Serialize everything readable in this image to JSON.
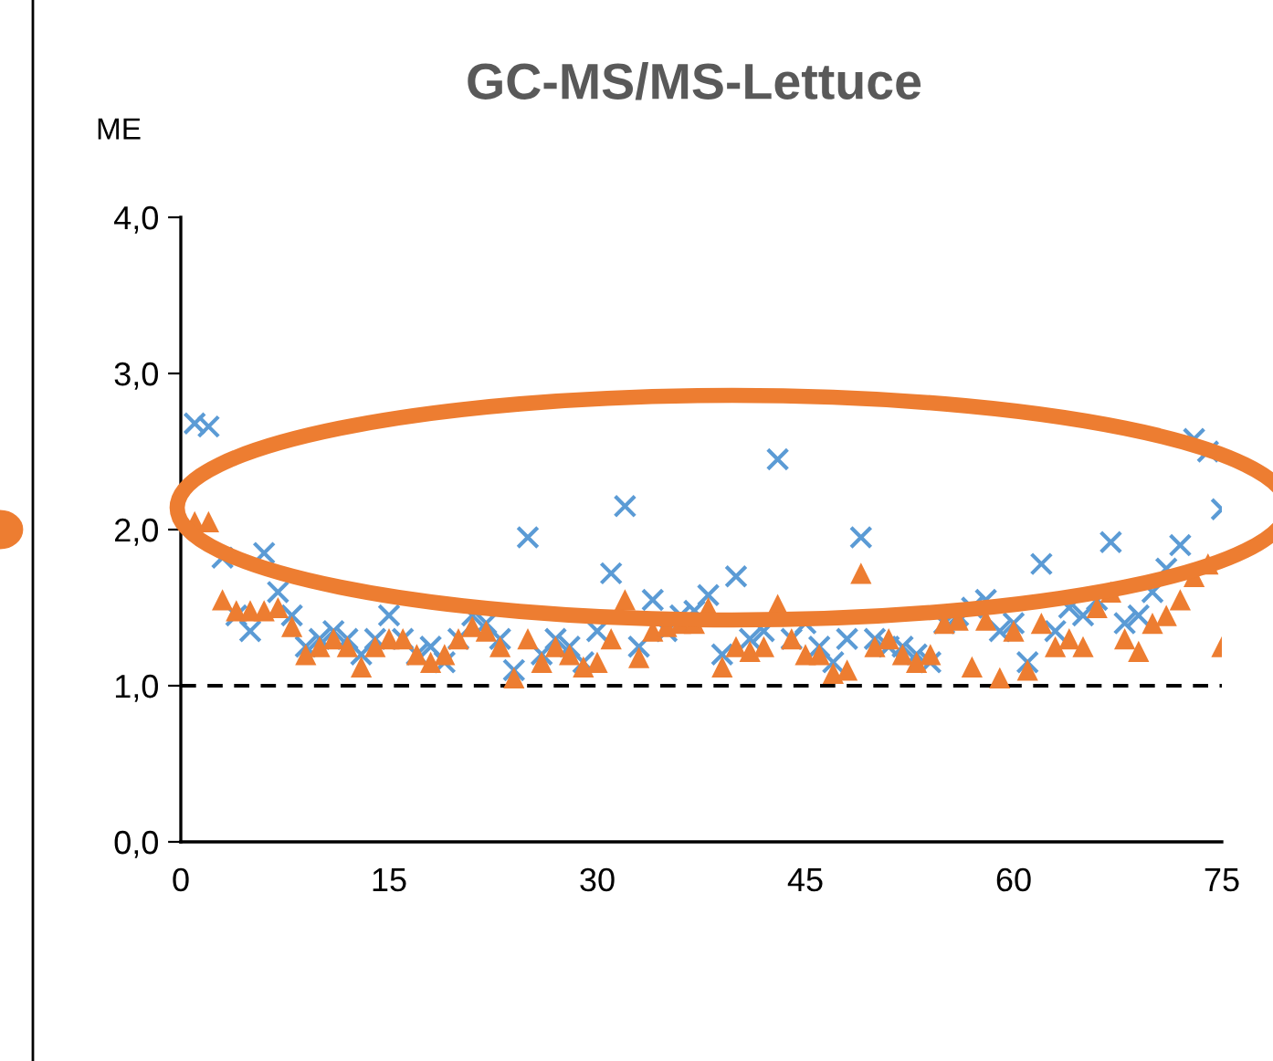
{
  "chart_data": {
    "type": "scatter",
    "title": "GC-MS/MS-Lettuce",
    "ylabel": "ME",
    "x": [
      1,
      2,
      3,
      4,
      5,
      6,
      7,
      8,
      9,
      10,
      11,
      12,
      13,
      14,
      15,
      16,
      17,
      18,
      19,
      20,
      21,
      22,
      23,
      24,
      25,
      26,
      27,
      28,
      29,
      30,
      31,
      32,
      33,
      34,
      35,
      36,
      37,
      38,
      39,
      40,
      41,
      42,
      43,
      44,
      45,
      46,
      47,
      48,
      49,
      50,
      51,
      52,
      53,
      54,
      55,
      56,
      57,
      58,
      59,
      60,
      61,
      62,
      63,
      64,
      65,
      66,
      67,
      68,
      69,
      70,
      71,
      72,
      73,
      74,
      75
    ],
    "series": [
      {
        "color": "#5b9bd5",
        "marker": "cross",
        "values": [
          2.68,
          2.66,
          1.82,
          1.45,
          1.35,
          1.85,
          1.6,
          1.45,
          1.25,
          1.3,
          1.35,
          1.3,
          1.2,
          1.3,
          1.45,
          1.3,
          1.2,
          1.25,
          1.15,
          1.3,
          1.45,
          1.4,
          1.3,
          1.1,
          1.95,
          1.2,
          1.3,
          1.25,
          1.15,
          1.35,
          1.72,
          2.15,
          1.25,
          1.55,
          1.35,
          1.45,
          1.48,
          1.58,
          1.2,
          1.7,
          1.3,
          1.35,
          2.45,
          1.3,
          1.4,
          1.25,
          1.15,
          1.3,
          1.95,
          1.3,
          1.25,
          1.25,
          1.2,
          1.15,
          1.4,
          1.45,
          1.5,
          1.55,
          1.35,
          1.4,
          1.15,
          1.78,
          1.35,
          1.5,
          1.45,
          1.55,
          1.92,
          1.4,
          1.45,
          1.6,
          1.75,
          1.9,
          2.58,
          2.5,
          2.13
        ]
      },
      {
        "color": "#ed7d31",
        "marker": "triangle",
        "values": [
          2.05,
          2.05,
          1.55,
          1.48,
          1.48,
          1.48,
          1.5,
          1.38,
          1.2,
          1.25,
          1.3,
          1.25,
          1.12,
          1.25,
          1.3,
          1.3,
          1.2,
          1.15,
          1.2,
          1.3,
          1.38,
          1.35,
          1.25,
          1.05,
          1.3,
          1.15,
          1.25,
          1.2,
          1.12,
          1.15,
          1.3,
          1.55,
          1.18,
          1.35,
          1.38,
          1.4,
          1.4,
          1.5,
          1.12,
          1.25,
          1.22,
          1.25,
          1.52,
          1.3,
          1.2,
          1.2,
          1.08,
          1.1,
          1.72,
          1.25,
          1.3,
          1.2,
          1.15,
          1.2,
          1.4,
          1.42,
          1.12,
          1.42,
          1.05,
          1.35,
          1.1,
          1.4,
          1.25,
          1.3,
          1.25,
          1.5,
          1.6,
          1.3,
          1.22,
          1.4,
          1.45,
          1.55,
          1.7,
          1.78,
          1.25
        ]
      }
    ],
    "xlim": [
      0,
      75
    ],
    "xticks": [
      0,
      15,
      30,
      45,
      60,
      75
    ],
    "ylim": [
      0,
      4
    ],
    "yticks": [
      {
        "value": 0,
        "label": "0,0"
      },
      {
        "value": 1,
        "label": "1,0"
      },
      {
        "value": 2,
        "label": "2,0"
      },
      {
        "value": 3,
        "label": "3,0"
      },
      {
        "value": 4,
        "label": "4,0"
      }
    ],
    "ref_lines": [
      {
        "axis": "y",
        "value": 1,
        "color": "#000000",
        "line_style": "dashed"
      }
    ],
    "grid": false,
    "legend": false
  }
}
